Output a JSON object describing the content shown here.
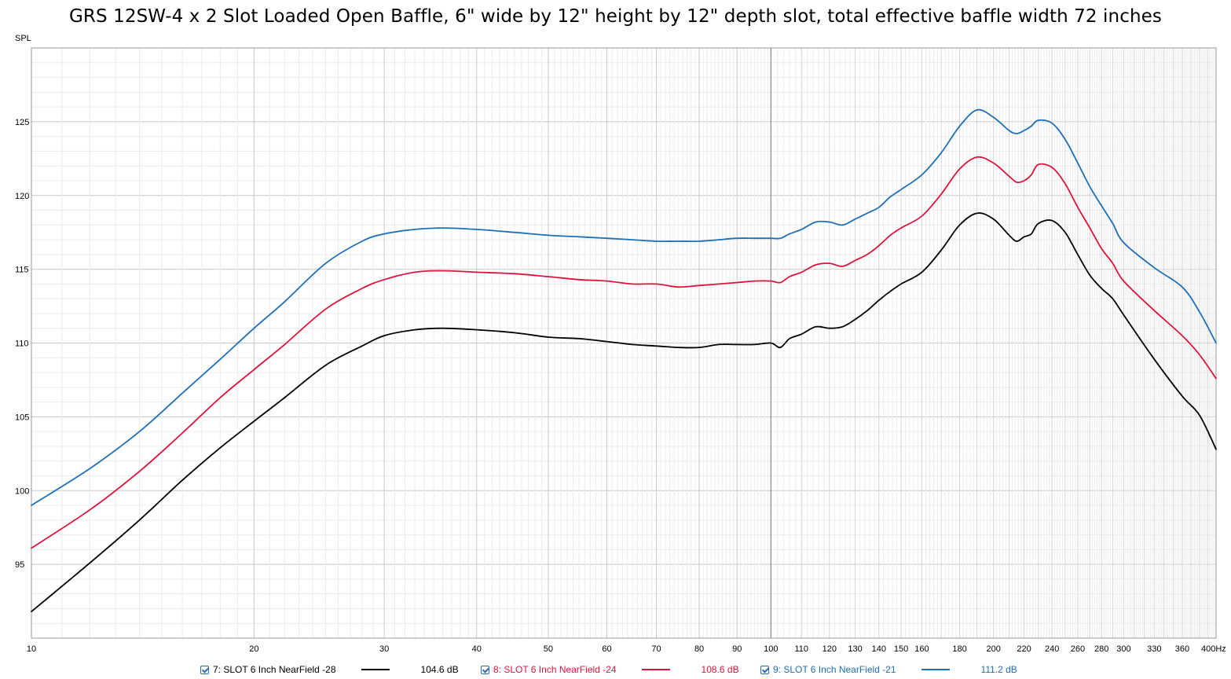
{
  "chart_data": {
    "type": "line",
    "title": "GRS 12SW-4 x 2 Slot Loaded Open Baffle, 6\" wide by 12\" height by 12\" depth slot, total effective baffle width 72 inches",
    "ylabel": "SPL",
    "xlabel": "Hz",
    "xscale": "log",
    "xlim": [
      10,
      400
    ],
    "ylim": [
      90,
      130
    ],
    "grid": true,
    "x_tick_labels": [
      {
        "v": 10,
        "t": "10"
      },
      {
        "v": 20,
        "t": "20"
      },
      {
        "v": 30,
        "t": "30"
      },
      {
        "v": 40,
        "t": "40"
      },
      {
        "v": 50,
        "t": "50"
      },
      {
        "v": 60,
        "t": "60"
      },
      {
        "v": 70,
        "t": "70"
      },
      {
        "v": 80,
        "t": "80"
      },
      {
        "v": 90,
        "t": "90"
      },
      {
        "v": 100,
        "t": "100"
      },
      {
        "v": 110,
        "t": "110"
      },
      {
        "v": 120,
        "t": "120"
      },
      {
        "v": 130,
        "t": "130"
      },
      {
        "v": 140,
        "t": "140"
      },
      {
        "v": 150,
        "t": "150"
      },
      {
        "v": 160,
        "t": "160"
      },
      {
        "v": 180,
        "t": "180"
      },
      {
        "v": 200,
        "t": "200"
      },
      {
        "v": 220,
        "t": "220"
      },
      {
        "v": 240,
        "t": "240"
      },
      {
        "v": 260,
        "t": "260"
      },
      {
        "v": 280,
        "t": "280"
      },
      {
        "v": 300,
        "t": "300"
      },
      {
        "v": 330,
        "t": "330"
      },
      {
        "v": 360,
        "t": "360"
      },
      {
        "v": 400,
        "t": "400Hz"
      }
    ],
    "y_ticks": [
      95,
      100,
      105,
      110,
      115,
      120,
      125
    ],
    "series": [
      {
        "name": "7: SLOT 6 Inch NearField -28",
        "color": "#000000",
        "legend_value": "104.6 dB",
        "x": [
          10,
          12,
          14,
          16,
          18,
          20,
          22,
          25,
          28,
          30,
          33,
          36,
          40,
          45,
          50,
          55,
          60,
          65,
          70,
          75,
          80,
          85,
          90,
          95,
          100,
          103,
          106,
          110,
          115,
          120,
          125,
          130,
          135,
          140,
          145,
          150,
          160,
          170,
          180,
          190,
          200,
          210,
          215,
          220,
          225,
          230,
          240,
          250,
          260,
          270,
          280,
          290,
          300,
          330,
          360,
          380,
          400
        ],
        "y": [
          91.8,
          95.1,
          98.0,
          100.7,
          102.9,
          104.7,
          106.3,
          108.5,
          109.8,
          110.5,
          110.9,
          111.0,
          110.9,
          110.7,
          110.4,
          110.3,
          110.1,
          109.9,
          109.8,
          109.7,
          109.7,
          109.9,
          109.9,
          109.9,
          110.0,
          109.7,
          110.3,
          110.6,
          111.1,
          111.0,
          111.1,
          111.6,
          112.2,
          112.9,
          113.5,
          114.0,
          114.8,
          116.3,
          118.0,
          118.8,
          118.4,
          117.3,
          116.9,
          117.2,
          117.4,
          118.1,
          118.3,
          117.5,
          116.0,
          114.6,
          113.7,
          113.0,
          111.9,
          108.9,
          106.4,
          105.1,
          102.8
        ]
      },
      {
        "name": "8: SLOT 6 Inch NearField -24",
        "color": "#dc143c",
        "legend_value": "108.6 dB",
        "x": [
          10,
          12,
          14,
          16,
          18,
          20,
          22,
          25,
          28,
          30,
          33,
          36,
          40,
          45,
          50,
          55,
          60,
          65,
          70,
          75,
          80,
          85,
          90,
          95,
          100,
          103,
          106,
          110,
          115,
          120,
          125,
          130,
          135,
          140,
          145,
          150,
          160,
          170,
          180,
          190,
          200,
          210,
          215,
          220,
          225,
          230,
          240,
          250,
          260,
          270,
          280,
          290,
          300,
          330,
          360,
          380,
          400
        ],
        "y": [
          96.1,
          98.7,
          101.3,
          103.9,
          106.3,
          108.2,
          109.9,
          112.3,
          113.7,
          114.3,
          114.8,
          114.9,
          114.8,
          114.7,
          114.5,
          114.3,
          114.2,
          114.0,
          114.0,
          113.8,
          113.9,
          114.0,
          114.1,
          114.2,
          114.2,
          114.1,
          114.5,
          114.8,
          115.3,
          115.4,
          115.2,
          115.6,
          116.0,
          116.6,
          117.3,
          117.8,
          118.6,
          120.1,
          121.8,
          122.6,
          122.2,
          121.3,
          120.9,
          121.0,
          121.4,
          122.1,
          121.9,
          120.8,
          119.2,
          117.8,
          116.4,
          115.4,
          114.2,
          112.2,
          110.5,
          109.2,
          107.6
        ]
      },
      {
        "name": "9: SLOT 6 Inch NearField -21",
        "color": "#1f6fb5",
        "legend_value": "111.2 dB",
        "x": [
          10,
          12,
          14,
          16,
          18,
          20,
          22,
          25,
          28,
          30,
          33,
          36,
          40,
          45,
          50,
          55,
          60,
          65,
          70,
          75,
          80,
          85,
          90,
          95,
          100,
          103,
          106,
          110,
          115,
          120,
          125,
          130,
          135,
          140,
          145,
          150,
          160,
          170,
          180,
          190,
          200,
          210,
          215,
          220,
          225,
          230,
          240,
          250,
          260,
          270,
          280,
          290,
          300,
          330,
          360,
          380,
          400
        ],
        "y": [
          99.0,
          101.5,
          104.0,
          106.6,
          108.9,
          111.0,
          112.8,
          115.4,
          116.9,
          117.4,
          117.7,
          117.8,
          117.7,
          117.5,
          117.3,
          117.2,
          117.1,
          117.0,
          116.9,
          116.9,
          116.9,
          117.0,
          117.1,
          117.1,
          117.1,
          117.1,
          117.4,
          117.7,
          118.2,
          118.2,
          118.0,
          118.4,
          118.8,
          119.2,
          119.9,
          120.4,
          121.4,
          122.9,
          124.7,
          125.8,
          125.3,
          124.4,
          124.2,
          124.4,
          124.7,
          125.1,
          124.9,
          123.8,
          122.2,
          120.6,
          119.3,
          118.1,
          116.8,
          115.1,
          113.8,
          112.1,
          110.0
        ]
      }
    ]
  }
}
